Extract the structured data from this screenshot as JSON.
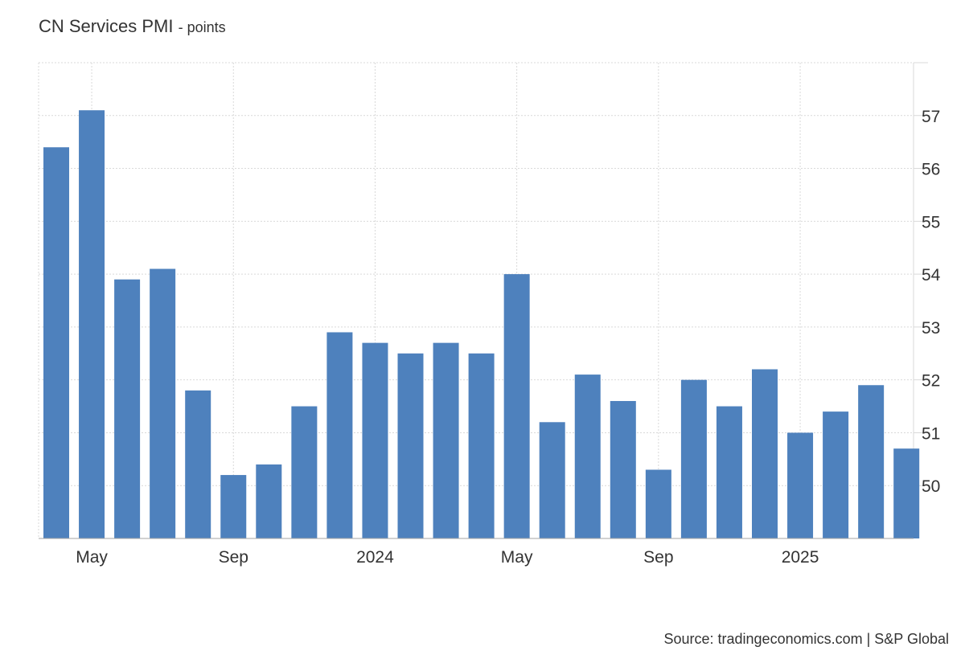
{
  "title": "CN Services PMI",
  "unit": "- points",
  "source": "Source: tradingeconomics.com | S&P Global",
  "chart_data": {
    "type": "bar",
    "color": "#4e81bd",
    "categories": [
      "2023-04",
      "2023-05",
      "2023-06",
      "2023-07",
      "2023-08",
      "2023-09",
      "2023-10",
      "2023-11",
      "2023-12",
      "2024-01",
      "2024-02",
      "2024-03",
      "2024-04",
      "2024-05",
      "2024-06",
      "2024-07",
      "2024-08",
      "2024-09",
      "2024-10",
      "2024-11",
      "2024-12",
      "2025-01",
      "2025-02",
      "2025-03",
      "2025-04"
    ],
    "values": [
      56.4,
      57.1,
      53.9,
      54.1,
      51.8,
      50.2,
      50.4,
      51.5,
      52.9,
      52.7,
      52.5,
      52.7,
      52.5,
      54.0,
      51.2,
      52.1,
      51.6,
      50.3,
      52.0,
      51.5,
      52.2,
      51.0,
      51.4,
      51.9,
      50.7
    ],
    "ylim": [
      49,
      58
    ],
    "yticks": [
      50,
      51,
      52,
      53,
      54,
      55,
      56,
      57
    ],
    "xticks": [
      {
        "label": "May",
        "index": 1
      },
      {
        "label": "Sep",
        "index": 5
      },
      {
        "label": "2024",
        "index": 9
      },
      {
        "label": "May",
        "index": 13
      },
      {
        "label": "Sep",
        "index": 17
      },
      {
        "label": "2025",
        "index": 21
      }
    ],
    "grid": true,
    "y_axis_side": "right"
  }
}
